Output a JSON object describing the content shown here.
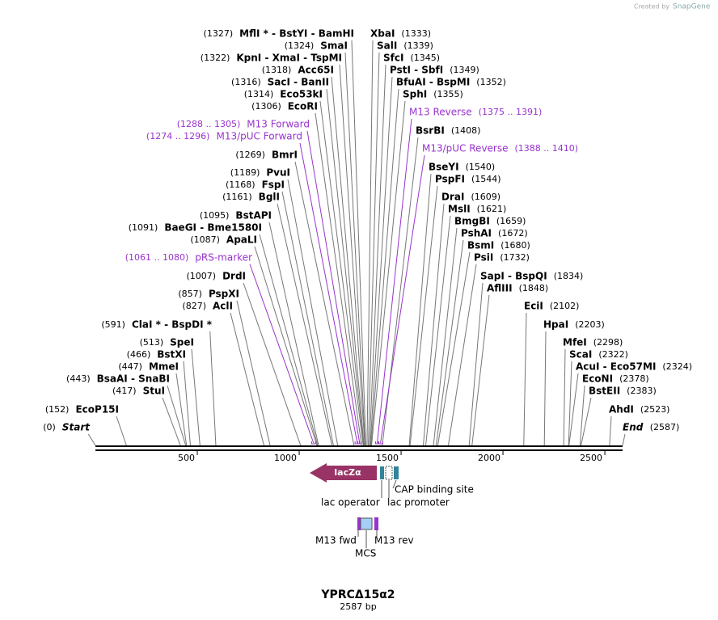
{
  "credit": {
    "prefix": "Created by",
    "brand": "SnapGene"
  },
  "map": {
    "title": "YPRCΔ15α2",
    "length": {
      "value": 2587,
      "label": "2587 bp"
    },
    "ticks": [
      500,
      1000,
      1500,
      2000,
      2500
    ],
    "start": {
      "names": "Start",
      "site": {
        "value": 0,
        "label": "(0)"
      }
    },
    "end": {
      "names": "End",
      "site": {
        "value": 2587,
        "label": "(2587)"
      }
    },
    "left": [
      {
        "names": "MflI * - BstYI - BamHI",
        "site": {
          "value": 1327,
          "label": "(1327)"
        }
      },
      {
        "names": "SmaI",
        "site": {
          "value": 1324,
          "label": "(1324)"
        }
      },
      {
        "names": "KpnI - XmaI - TspMI",
        "site": {
          "value": 1322,
          "label": "(1322)"
        }
      },
      {
        "names": "Acc65I",
        "site": {
          "value": 1318,
          "label": "(1318)"
        }
      },
      {
        "names": "SacI - BanII",
        "site": {
          "value": 1316,
          "label": "(1316)"
        }
      },
      {
        "names": "Eco53kI",
        "site": {
          "value": 1314,
          "label": "(1314)"
        }
      },
      {
        "names": "EcoRI",
        "site": {
          "value": 1306,
          "label": "(1306)"
        }
      },
      {
        "names": "M13 Forward",
        "range": {
          "start": 1288,
          "end": 1305,
          "label": "(1288 .. 1305)"
        }
      },
      {
        "names": "M13/pUC Forward",
        "range": {
          "start": 1274,
          "end": 1296,
          "label": "(1274 .. 1296)"
        }
      },
      {
        "names": "BmrI",
        "site": {
          "value": 1269,
          "label": "(1269)"
        }
      },
      {
        "names": "PvuI",
        "site": {
          "value": 1189,
          "label": "(1189)"
        }
      },
      {
        "names": "FspI",
        "site": {
          "value": 1168,
          "label": "(1168)"
        }
      },
      {
        "names": "BglI",
        "site": {
          "value": 1161,
          "label": "(1161)"
        }
      },
      {
        "names": "BstAPI",
        "site": {
          "value": 1095,
          "label": "(1095)"
        }
      },
      {
        "names": "BaeGI - Bme1580I",
        "site": {
          "value": 1091,
          "label": "(1091)"
        }
      },
      {
        "names": "ApaLI",
        "site": {
          "value": 1087,
          "label": "(1087)"
        }
      },
      {
        "names": "pRS-marker",
        "range": {
          "start": 1061,
          "end": 1080,
          "label": "(1061 .. 1080)"
        }
      },
      {
        "names": "DrdI",
        "site": {
          "value": 1007,
          "label": "(1007)"
        }
      },
      {
        "names": "PspXI",
        "site": {
          "value": 857,
          "label": "(857)"
        }
      },
      {
        "names": "AclI",
        "site": {
          "value": 827,
          "label": "(827)"
        }
      },
      {
        "names": "ClaI * - BspDI *",
        "site": {
          "value": 591,
          "label": "(591)"
        }
      },
      {
        "names": "SpeI",
        "site": {
          "value": 513,
          "label": "(513)"
        }
      },
      {
        "names": "BstXI",
        "site": {
          "value": 466,
          "label": "(466)"
        }
      },
      {
        "names": "MmeI",
        "site": {
          "value": 447,
          "label": "(447)"
        }
      },
      {
        "names": "BsaAI - SnaBI",
        "site": {
          "value": 443,
          "label": "(443)"
        }
      },
      {
        "names": "StuI",
        "site": {
          "value": 417,
          "label": "(417)"
        }
      },
      {
        "names": "EcoP15I",
        "site": {
          "value": 152,
          "label": "(152)"
        }
      }
    ],
    "right": [
      {
        "names": "XbaI",
        "site": {
          "value": 1333,
          "label": "(1333)"
        }
      },
      {
        "names": "SalI",
        "site": {
          "value": 1339,
          "label": "(1339)"
        }
      },
      {
        "names": "SfcI",
        "site": {
          "value": 1345,
          "label": "(1345)"
        }
      },
      {
        "names": "PstI - SbfI",
        "site": {
          "value": 1349,
          "label": "(1349)"
        }
      },
      {
        "names": "BfuAI - BspMI",
        "site": {
          "value": 1352,
          "label": "(1352)"
        }
      },
      {
        "names": "SphI",
        "site": {
          "value": 1355,
          "label": "(1355)"
        }
      },
      {
        "names": "M13 Reverse",
        "range": {
          "start": 1375,
          "end": 1391,
          "label": "(1375 .. 1391)"
        }
      },
      {
        "names": "BsrBI",
        "site": {
          "value": 1408,
          "label": "(1408)"
        }
      },
      {
        "names": "M13/pUC Reverse",
        "range": {
          "start": 1388,
          "end": 1410,
          "label": "(1388 .. 1410)"
        }
      },
      {
        "names": "BseYI",
        "site": {
          "value": 1540,
          "label": "(1540)"
        }
      },
      {
        "names": "PspFI",
        "site": {
          "value": 1544,
          "label": "(1544)"
        }
      },
      {
        "names": "DraI",
        "site": {
          "value": 1609,
          "label": "(1609)"
        }
      },
      {
        "names": "MslI",
        "site": {
          "value": 1621,
          "label": "(1621)"
        }
      },
      {
        "names": "BmgBI",
        "site": {
          "value": 1659,
          "label": "(1659)"
        }
      },
      {
        "names": "PshAI",
        "site": {
          "value": 1672,
          "label": "(1672)"
        }
      },
      {
        "names": "BsmI",
        "site": {
          "value": 1680,
          "label": "(1680)"
        }
      },
      {
        "names": "PsiI",
        "site": {
          "value": 1732,
          "label": "(1732)"
        }
      },
      {
        "names": "SapI - BspQI",
        "site": {
          "value": 1834,
          "label": "(1834)"
        }
      },
      {
        "names": "AflIII",
        "site": {
          "value": 1848,
          "label": "(1848)"
        }
      },
      {
        "names": "EciI",
        "site": {
          "value": 2102,
          "label": "(2102)"
        }
      },
      {
        "names": "HpaI",
        "site": {
          "value": 2203,
          "label": "(2203)"
        }
      },
      {
        "names": "MfeI",
        "site": {
          "value": 2298,
          "label": "(2298)"
        }
      },
      {
        "names": "ScaI",
        "site": {
          "value": 2322,
          "label": "(2322)"
        }
      },
      {
        "names": "AcuI - Eco57MI",
        "site": {
          "value": 2324,
          "label": "(2324)"
        }
      },
      {
        "names": "EcoNI",
        "site": {
          "value": 2378,
          "label": "(2378)"
        }
      },
      {
        "names": "BstEII",
        "site": {
          "value": 2383,
          "label": "(2383)"
        }
      },
      {
        "names": "AhdI",
        "site": {
          "value": 2523,
          "label": "(2523)"
        }
      }
    ],
    "features": {
      "lacz": "lacZα",
      "cap": "CAP binding site",
      "operator": "lac operator",
      "promoter": "lac promoter",
      "m13fwd": "M13 fwd",
      "m13rev": "M13 rev",
      "mcs": "MCS"
    }
  }
}
